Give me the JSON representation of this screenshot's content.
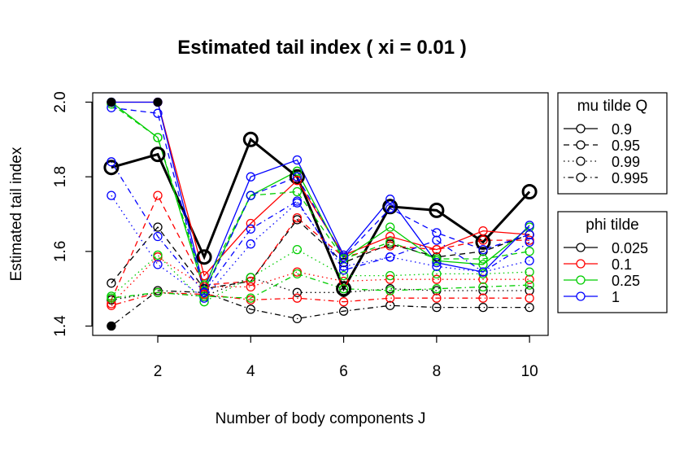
{
  "chart_data": {
    "type": "line",
    "title": "Estimated tail index ( xi = 0.01 )",
    "xlabel": "Number of body components J",
    "ylabel": "Estimated tail index",
    "xlim": [
      0.6,
      10.4
    ],
    "ylim": [
      1.375,
      2.025
    ],
    "xticks": [
      2,
      4,
      6,
      8,
      10
    ],
    "yticks": [
      1.4,
      1.6,
      1.8,
      2.0
    ],
    "grid": false,
    "x": [
      1,
      2,
      3,
      4,
      5,
      6,
      7,
      8,
      9,
      10
    ],
    "colors": {
      "0.025": "#000000",
      "0.1": "#ff0000",
      "0.25": "#00cd00",
      "1": "#0000ff"
    },
    "series": [
      {
        "mu": "0.9",
        "phi": "0.025",
        "values": [
          1.825,
          1.86,
          1.585,
          1.9,
          1.8,
          1.5,
          1.72,
          1.71,
          1.625,
          1.76
        ],
        "bold": true
      },
      {
        "mu": "0.9",
        "phi": "0.1",
        "values": [
          2.0,
          2.0,
          1.535,
          1.675,
          1.79,
          1.59,
          1.64,
          1.605,
          1.655,
          1.645
        ]
      },
      {
        "mu": "0.9",
        "phi": "0.25",
        "values": [
          2.0,
          1.905,
          1.495,
          1.75,
          1.815,
          1.58,
          1.665,
          1.575,
          1.565,
          1.665
        ]
      },
      {
        "mu": "0.9",
        "phi": "1",
        "values": [
          2.0,
          2.0,
          1.5,
          1.8,
          1.845,
          1.59,
          1.74,
          1.57,
          1.545,
          1.67
        ]
      },
      {
        "mu": "0.95",
        "phi": "0.025",
        "values": [
          1.515,
          1.665,
          1.5,
          1.52,
          1.685,
          1.57,
          1.62,
          1.585,
          1.6,
          1.645
        ]
      },
      {
        "mu": "0.95",
        "phi": "0.1",
        "values": [
          1.47,
          1.75,
          1.51,
          1.52,
          1.69,
          1.585,
          1.615,
          1.605,
          1.63,
          1.63
        ]
      },
      {
        "mu": "0.95",
        "phi": "0.25",
        "values": [
          1.995,
          1.905,
          1.51,
          1.75,
          1.76,
          1.58,
          1.625,
          1.58,
          1.58,
          1.6
        ]
      },
      {
        "mu": "0.95",
        "phi": "1",
        "values": [
          1.985,
          1.97,
          1.49,
          1.75,
          1.8,
          1.585,
          1.715,
          1.65,
          1.605,
          1.645
        ]
      },
      {
        "mu": "0.99",
        "phi": "0.025",
        "values": [
          1.47,
          1.49,
          1.48,
          1.53,
          1.49,
          1.49,
          1.5,
          1.495,
          1.495,
          1.495
        ]
      },
      {
        "mu": "0.99",
        "phi": "0.1",
        "values": [
          1.46,
          1.585,
          1.505,
          1.505,
          1.545,
          1.52,
          1.525,
          1.525,
          1.525,
          1.525
        ]
      },
      {
        "mu": "0.99",
        "phi": "0.25",
        "values": [
          1.48,
          1.59,
          1.465,
          1.53,
          1.605,
          1.535,
          1.535,
          1.54,
          1.54,
          1.545
        ]
      },
      {
        "mu": "0.99",
        "phi": "1",
        "values": [
          1.75,
          1.565,
          1.475,
          1.62,
          1.73,
          1.56,
          1.585,
          1.56,
          1.545,
          1.575
        ]
      },
      {
        "mu": "0.995",
        "phi": "0.025",
        "values": [
          1.4,
          1.495,
          1.49,
          1.445,
          1.42,
          1.44,
          1.455,
          1.45,
          1.45,
          1.45
        ]
      },
      {
        "mu": "0.995",
        "phi": "0.1",
        "values": [
          1.455,
          1.49,
          1.485,
          1.47,
          1.475,
          1.465,
          1.475,
          1.475,
          1.475,
          1.475
        ]
      },
      {
        "mu": "0.995",
        "phi": "0.25",
        "values": [
          1.475,
          1.49,
          1.48,
          1.475,
          1.54,
          1.5,
          1.495,
          1.5,
          1.505,
          1.51
        ]
      },
      {
        "mu": "0.995",
        "phi": "1",
        "values": [
          1.84,
          1.64,
          1.49,
          1.66,
          1.735,
          1.55,
          1.585,
          1.63,
          1.545,
          1.625
        ]
      }
    ],
    "filled_points": [
      {
        "x": 1,
        "y": 2.0
      },
      {
        "x": 2,
        "y": 2.0
      },
      {
        "x": 1,
        "y": 1.4
      }
    ],
    "legend_mu": {
      "title": "mu tilde Q",
      "placement": "right-top",
      "entries": [
        {
          "label": "0.9",
          "dash": "solid"
        },
        {
          "label": "0.95",
          "dash": "dashed"
        },
        {
          "label": "0.99",
          "dash": "dotted"
        },
        {
          "label": "0.995",
          "dash": "dotdash"
        }
      ]
    },
    "legend_phi": {
      "title": "phi tilde",
      "placement": "right-middle",
      "entries": [
        {
          "label": "0.025",
          "color": "#000000"
        },
        {
          "label": "0.1",
          "color": "#ff0000"
        },
        {
          "label": "0.25",
          "color": "#00cd00"
        },
        {
          "label": "1",
          "color": "#0000ff"
        }
      ]
    }
  }
}
